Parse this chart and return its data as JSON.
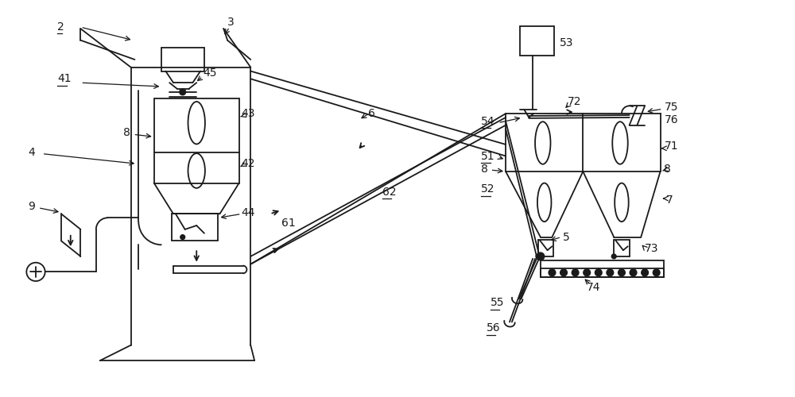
{
  "bg_color": "#ffffff",
  "line_color": "#1a1a1a",
  "figure_size": [
    10.0,
    5.0
  ],
  "dpi": 100
}
